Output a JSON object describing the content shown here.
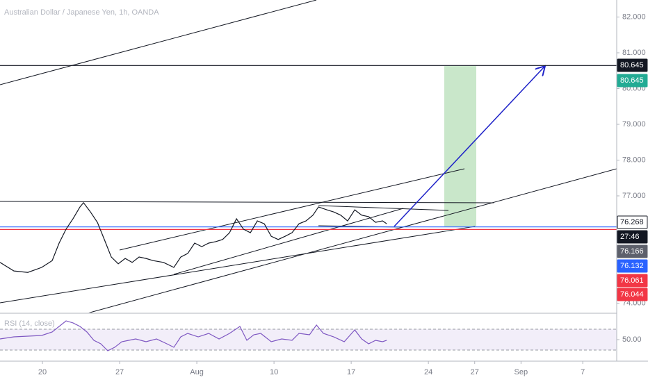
{
  "chart_data": [
    {
      "type": "line",
      "title": "Australian Dollar / Japanese Yen, 1h, OANDA",
      "color": "#131722",
      "x": [
        -2.75,
        -1.85,
        -0.95,
        -0.05,
        0.63,
        1.08,
        1.53,
        1.98,
        2.43,
        2.66,
        3.11,
        3.56,
        4.01,
        4.46,
        4.91,
        5.36,
        5.81,
        6.26,
        6.71,
        7.16,
        7.84,
        8.51,
        8.96,
        9.41,
        9.86,
        10.32,
        10.77,
        11.22,
        11.67,
        12.12,
        12.57,
        13.02,
        13.47,
        13.92,
        14.37,
        14.82,
        15.27,
        15.72,
        16.17,
        16.62,
        17.07,
        17.52,
        17.88,
        18.42,
        18.87,
        19.32,
        19.77,
        20.23,
        20.68,
        21.13,
        21.58,
        22.03,
        22.3
      ],
      "values": [
        75.14,
        74.9,
        74.86,
        75.0,
        75.19,
        75.68,
        76.07,
        76.36,
        76.69,
        76.81,
        76.55,
        76.26,
        75.78,
        75.29,
        75.1,
        75.25,
        75.14,
        75.29,
        75.25,
        75.19,
        75.14,
        75.0,
        75.29,
        75.39,
        75.68,
        75.58,
        75.68,
        75.72,
        75.78,
        75.97,
        76.36,
        76.07,
        75.97,
        76.3,
        76.22,
        75.87,
        75.78,
        75.87,
        75.97,
        76.22,
        76.3,
        76.46,
        76.69,
        76.61,
        76.55,
        76.46,
        76.3,
        76.61,
        76.46,
        76.42,
        76.26,
        76.3,
        76.22
      ],
      "xlim": [
        -2.75,
        37.2
      ],
      "xticks": [
        {
          "value": 0,
          "label": "20"
        },
        {
          "value": 5,
          "label": "27"
        },
        {
          "value": 10,
          "label": "Aug"
        },
        {
          "value": 15,
          "label": "10"
        },
        {
          "value": 20,
          "label": "17"
        },
        {
          "value": 25,
          "label": "24"
        },
        {
          "value": 28,
          "label": "27"
        },
        {
          "value": 31,
          "label": "Sep"
        },
        {
          "value": 35,
          "label": "7"
        }
      ],
      "ylim": [
        73.738,
        82.476
      ],
      "yticks": [
        {
          "value": 82,
          "label": "82.000"
        },
        {
          "value": 81,
          "label": "81.000"
        },
        {
          "value": 80,
          "label": "80.000"
        },
        {
          "value": 79,
          "label": "79.000"
        },
        {
          "value": 78,
          "label": "78.000"
        },
        {
          "value": 77,
          "label": "77.000"
        },
        {
          "value": 74,
          "label": "74.000"
        }
      ],
      "price_lines": [
        {
          "value": 80.645,
          "color": "#131722"
        },
        {
          "value": 76.132,
          "color": "#2962ff"
        },
        {
          "value": 76.061,
          "color": "#f23645"
        }
      ],
      "price_labels": [
        {
          "label": "80.645",
          "bg": "#131722",
          "fg": "#ffffff"
        },
        {
          "label": "80.645",
          "bg": "#22ab94",
          "fg": "#ffffff"
        },
        {
          "label": "76.268",
          "bg": "#ffffff",
          "fg": "#131722"
        },
        {
          "label": "27:46",
          "bg": "#131722",
          "fg": "#ffffff"
        },
        {
          "label": "76.166",
          "bg": "#5d606b",
          "fg": "#ffffff"
        },
        {
          "label": "76.132",
          "bg": "#2962ff",
          "fg": "#ffffff"
        },
        {
          "label": "76.061",
          "bg": "#f23645",
          "fg": "#ffffff"
        },
        {
          "label": "76.044",
          "bg": "#f23645",
          "fg": "#ffffff"
        }
      ]
    },
    {
      "type": "line",
      "title": "RSI (14, close)",
      "color": "#7e57c2",
      "x": [
        -2.75,
        -1.85,
        -0.95,
        -0.05,
        0.63,
        1.08,
        1.53,
        1.98,
        2.43,
        2.88,
        3.33,
        3.78,
        4.23,
        4.68,
        5.14,
        5.59,
        6.04,
        6.71,
        7.39,
        8.06,
        8.51,
        8.96,
        9.41,
        10.09,
        10.77,
        11.44,
        12.12,
        12.79,
        13.24,
        13.69,
        14.14,
        14.82,
        15.5,
        16.17,
        16.62,
        17.3,
        17.75,
        18.2,
        18.87,
        19.55,
        20.23,
        20.68,
        21.13,
        21.58,
        22.03,
        22.3
      ],
      "values": [
        51.3,
        55.3,
        56.7,
        58,
        64.7,
        75.3,
        86,
        82,
        75.3,
        64.7,
        48.7,
        42,
        28.7,
        35.3,
        46,
        48.7,
        51.3,
        46,
        51.3,
        42,
        35.3,
        55.3,
        62,
        55.3,
        62,
        51.3,
        62,
        75.3,
        48.7,
        59.3,
        62,
        46,
        51.3,
        48.7,
        62,
        59.3,
        78,
        62,
        55.3,
        46,
        68.7,
        51.3,
        42,
        48.7,
        46,
        48.7
      ],
      "xlim": [
        -2.75,
        37.2
      ],
      "ylim": [
        8.7,
        99.3
      ],
      "yticks": [
        {
          "value": 50,
          "label": "50.00"
        }
      ],
      "levels": [
        30,
        70
      ]
    }
  ]
}
